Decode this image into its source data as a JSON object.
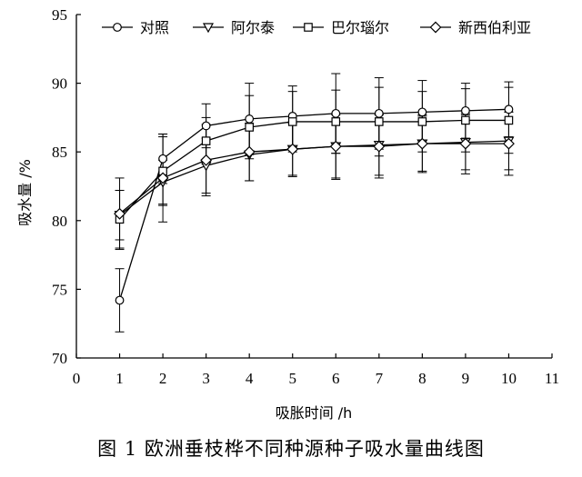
{
  "chart_data": {
    "type": "line",
    "xlabel": "吸胀时间 /h",
    "ylabel": "吸水量 /%",
    "xlim": [
      0,
      11
    ],
    "ylim": [
      70,
      95
    ],
    "xticks": [
      0,
      1,
      2,
      3,
      4,
      5,
      6,
      7,
      8,
      9,
      10,
      11
    ],
    "yticks": [
      70,
      75,
      80,
      85,
      90,
      95
    ],
    "legend_position": "top",
    "x": [
      1,
      2,
      3,
      4,
      5,
      6,
      7,
      8,
      9,
      10
    ],
    "series": [
      {
        "name": "对照",
        "marker": "circle",
        "values": [
          74.2,
          84.5,
          86.9,
          87.4,
          87.6,
          87.8,
          87.8,
          87.9,
          88.0,
          88.1
        ],
        "errors": [
          2.3,
          1.8,
          1.6,
          2.6,
          2.2,
          2.9,
          2.6,
          2.3,
          2.0,
          2.0
        ]
      },
      {
        "name": "阿尔泰",
        "marker": "triangle-down",
        "values": [
          80.4,
          82.8,
          84.0,
          84.8,
          85.2,
          85.4,
          85.5,
          85.6,
          85.7,
          85.8
        ],
        "errors": [
          1.8,
          1.6,
          2.0,
          1.9,
          1.9,
          2.4,
          2.2,
          2.1,
          2.0,
          2.1
        ]
      },
      {
        "name": "巴尔瑙尔",
        "marker": "square",
        "values": [
          80.1,
          83.6,
          85.8,
          86.8,
          87.2,
          87.2,
          87.2,
          87.2,
          87.3,
          87.3
        ],
        "errors": [
          2.1,
          2.5,
          1.7,
          2.3,
          2.2,
          2.3,
          2.5,
          2.2,
          2.3,
          2.4
        ]
      },
      {
        "name": "新西伯利亚",
        "marker": "diamond",
        "values": [
          80.5,
          83.1,
          84.4,
          85.0,
          85.2,
          85.4,
          85.4,
          85.6,
          85.6,
          85.6
        ],
        "errors": [
          2.6,
          3.2,
          2.6,
          2.1,
          2.0,
          2.3,
          2.3,
          2.0,
          2.2,
          2.3
        ]
      }
    ]
  },
  "caption": "图 1   欧洲垂枝桦不同种源种子吸水量曲线图"
}
